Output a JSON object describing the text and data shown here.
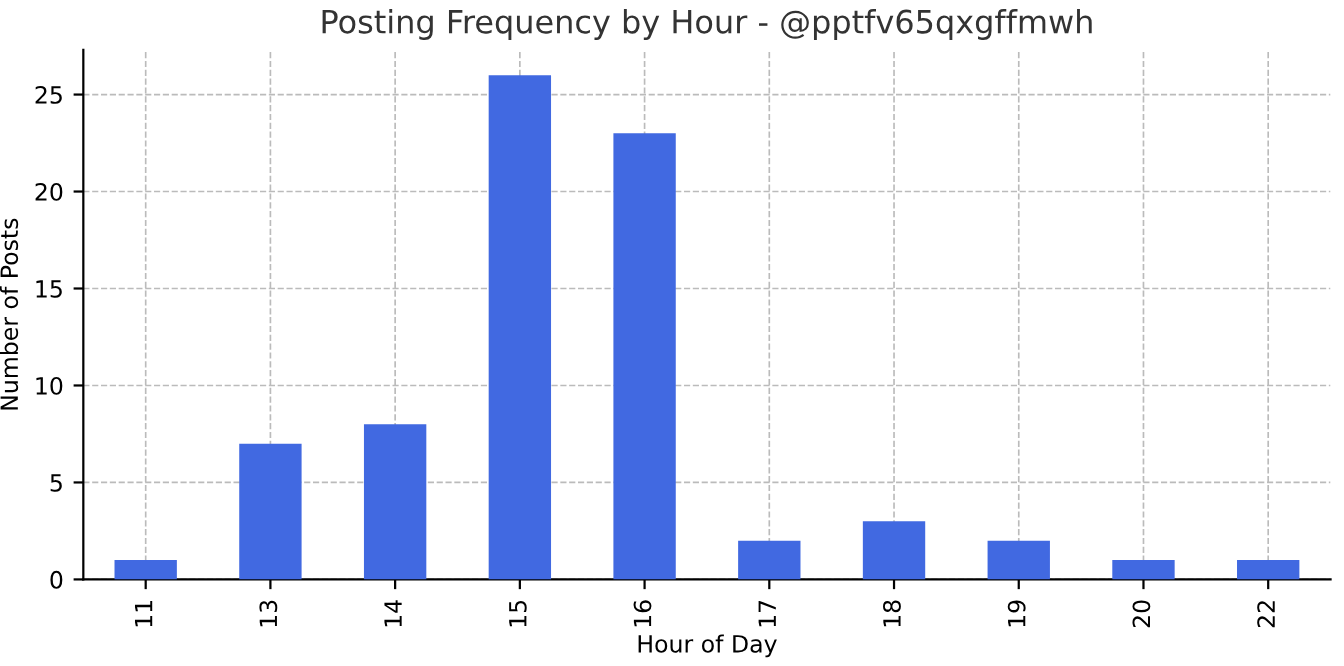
{
  "chart_data": {
    "type": "bar",
    "title": "Posting Frequency by Hour - @pptfv65qxgffmwh",
    "xlabel": "Hour of Day",
    "ylabel": "Number of Posts",
    "categories": [
      "11",
      "13",
      "14",
      "15",
      "16",
      "17",
      "18",
      "19",
      "20",
      "22"
    ],
    "values": [
      1,
      7,
      8,
      26,
      23,
      2,
      3,
      2,
      1,
      1
    ],
    "color": "#4169e1",
    "ylim": [
      0,
      27.3
    ],
    "yticks": [
      0,
      5,
      10,
      15,
      20,
      25
    ],
    "grid": true
  }
}
